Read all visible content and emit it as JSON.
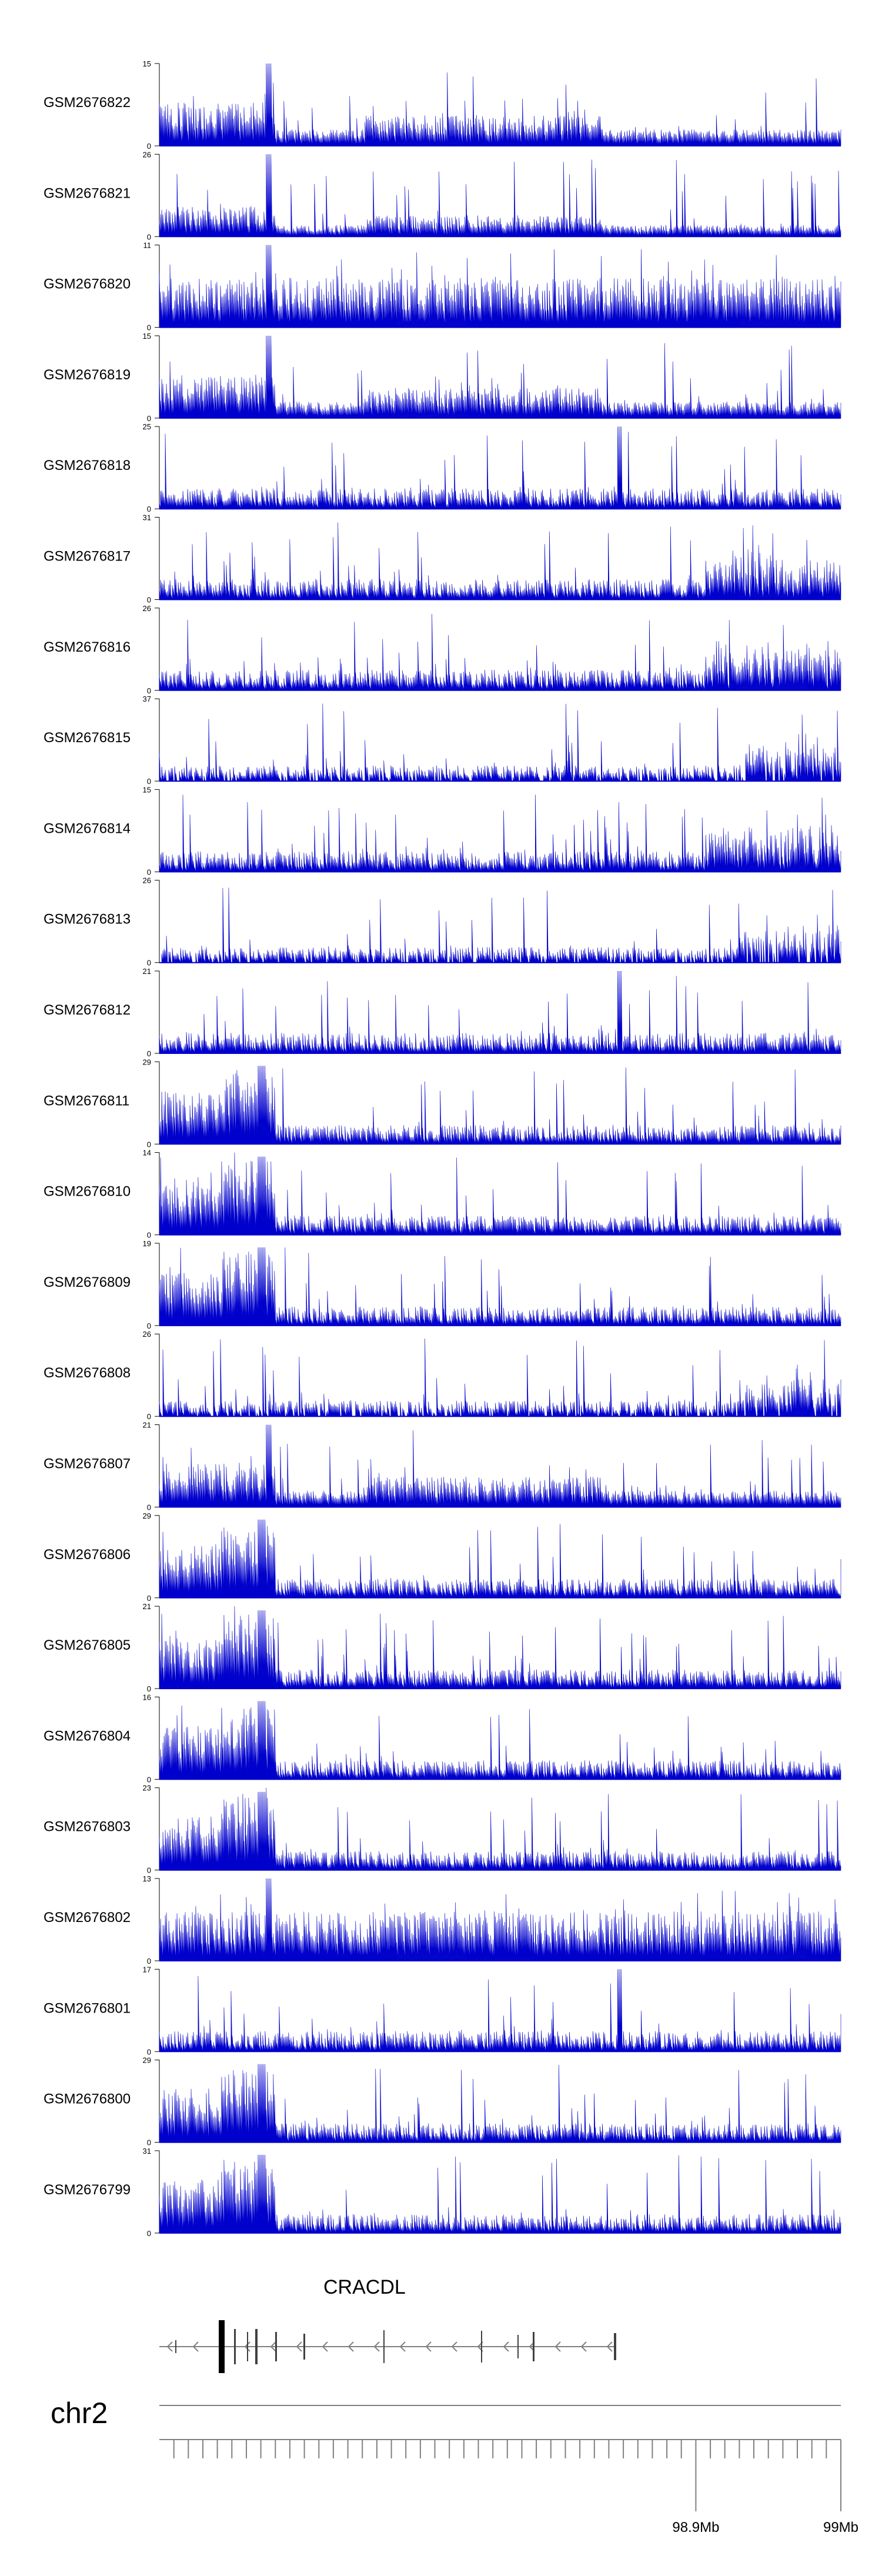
{
  "chart_data": {
    "type": "area",
    "description_free": true,
    "chromosome": "chr2",
    "gene": {
      "name": "CRACDL",
      "strand": "-"
    },
    "x_axis": {
      "range_mb": [
        98.53,
        99.0
      ],
      "tick_labels": [
        {
          "label": "98.9Mb",
          "position_mb": 98.9
        },
        {
          "label": "99Mb",
          "position_mb": 99.0
        }
      ]
    },
    "y_min_label": "0",
    "color": "#0000cc",
    "tracks": [
      {
        "name": "GSM2676822",
        "ymax": 15,
        "profile": "promoter"
      },
      {
        "name": "GSM2676821",
        "ymax": 26,
        "profile": "promoter-sparse"
      },
      {
        "name": "GSM2676820",
        "ymax": 11,
        "profile": "dense"
      },
      {
        "name": "GSM2676819",
        "ymax": 15,
        "profile": "promoter"
      },
      {
        "name": "GSM2676818",
        "ymax": 25,
        "profile": "spiky"
      },
      {
        "name": "GSM2676817",
        "ymax": 31,
        "profile": "spiky-right"
      },
      {
        "name": "GSM2676816",
        "ymax": 26,
        "profile": "spiky-right"
      },
      {
        "name": "GSM2676815",
        "ymax": 37,
        "profile": "triangles"
      },
      {
        "name": "GSM2676814",
        "ymax": 15,
        "profile": "spiky-right"
      },
      {
        "name": "GSM2676813",
        "ymax": 26,
        "profile": "triangles"
      },
      {
        "name": "GSM2676812",
        "ymax": 21,
        "profile": "spiky"
      },
      {
        "name": "GSM2676811",
        "ymax": 29,
        "profile": "left-block"
      },
      {
        "name": "GSM2676810",
        "ymax": 14,
        "profile": "left-block"
      },
      {
        "name": "GSM2676809",
        "ymax": 19,
        "profile": "left-block"
      },
      {
        "name": "GSM2676808",
        "ymax": 26,
        "profile": "triangles"
      },
      {
        "name": "GSM2676807",
        "ymax": 21,
        "profile": "promoter"
      },
      {
        "name": "GSM2676806",
        "ymax": 29,
        "profile": "left-block"
      },
      {
        "name": "GSM2676805",
        "ymax": 21,
        "profile": "left-block"
      },
      {
        "name": "GSM2676804",
        "ymax": 16,
        "profile": "left-block"
      },
      {
        "name": "GSM2676803",
        "ymax": 23,
        "profile": "left-block"
      },
      {
        "name": "GSM2676802",
        "ymax": 13,
        "profile": "dense"
      },
      {
        "name": "GSM2676801",
        "ymax": 17,
        "profile": "spiky"
      },
      {
        "name": "GSM2676800",
        "ymax": 29,
        "profile": "left-block"
      },
      {
        "name": "GSM2676799",
        "ymax": 31,
        "profile": "left-block"
      }
    ]
  }
}
